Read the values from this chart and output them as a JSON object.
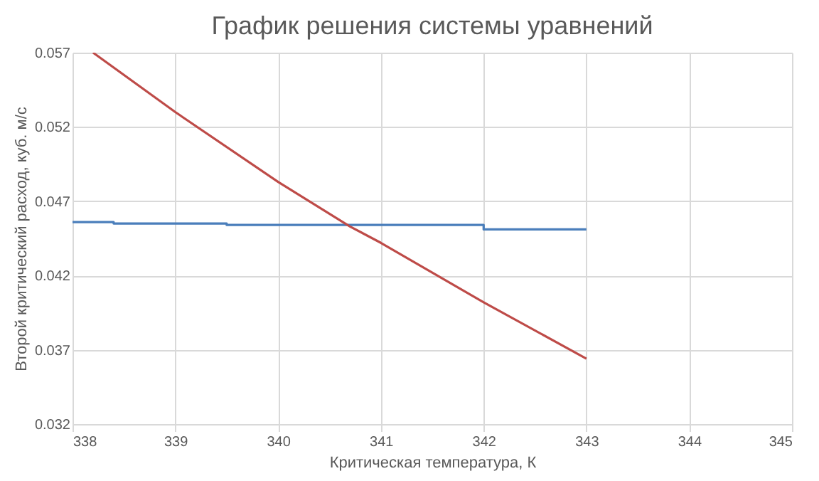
{
  "chart_data": {
    "type": "line",
    "title": "График решения системы уравнений",
    "xlabel": "Критическая температура, К",
    "ylabel": "Второй критический расход, куб. м/с",
    "series": [
      {
        "color": "#4a7ebb",
        "x": [
          338,
          338.4,
          338.4,
          339.5,
          339.5,
          342,
          342,
          343
        ],
        "values": [
          0.0456,
          0.0456,
          0.0455,
          0.0455,
          0.0454,
          0.0454,
          0.0451,
          0.0451
        ]
      },
      {
        "color": "#be4b48",
        "x": [
          338.2,
          339,
          340,
          340.7,
          341,
          342,
          343
        ],
        "values": [
          0.057,
          0.053,
          0.0483,
          0.0453,
          0.0442,
          0.0402,
          0.0364
        ]
      }
    ],
    "xlim": [
      338,
      345
    ],
    "xticks": [
      338,
      339,
      340,
      341,
      342,
      343,
      344,
      345
    ],
    "ylim": [
      0.032,
      0.057
    ],
    "yticks": [
      0.032,
      0.037,
      0.042,
      0.047,
      0.052,
      0.057
    ],
    "grid": true,
    "marker": "none",
    "line_style": "solid"
  }
}
